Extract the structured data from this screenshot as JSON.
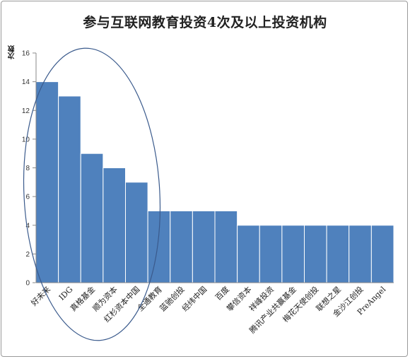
{
  "chart_data": {
    "type": "bar",
    "title": "参与互联网教育投资4次及以上投资机构",
    "ylabel": "次数",
    "xlabel": "",
    "ylim": [
      0,
      16
    ],
    "yticks": [
      0,
      2,
      4,
      6,
      8,
      10,
      12,
      14,
      16
    ],
    "categories": [
      "好未来",
      "IDG",
      "真格基金",
      "顺为资本",
      "红杉资本中国",
      "全通教育",
      "蓝驰创投",
      "经纬中国",
      "百度",
      "攀信资本",
      "祥峰投资",
      "腾讯产业共赢基金",
      "梅花天使创投",
      "联想之星",
      "金沙江创投",
      "PreAngel"
    ],
    "values": [
      14,
      13,
      9,
      8,
      7,
      5,
      5,
      5,
      5,
      4,
      4,
      4,
      4,
      4,
      4,
      4
    ],
    "grid": false,
    "legend": "none",
    "colors": {
      "bar": "#4f81bd",
      "bar_border": "#ffffff",
      "annotation_ellipse": "#3a5a8c",
      "axis": "#888888"
    },
    "annotation": {
      "shape": "ellipse",
      "covers_categories": [
        "好未来",
        "IDG",
        "真格基金",
        "顺为资本",
        "红杉资本中国"
      ]
    }
  }
}
